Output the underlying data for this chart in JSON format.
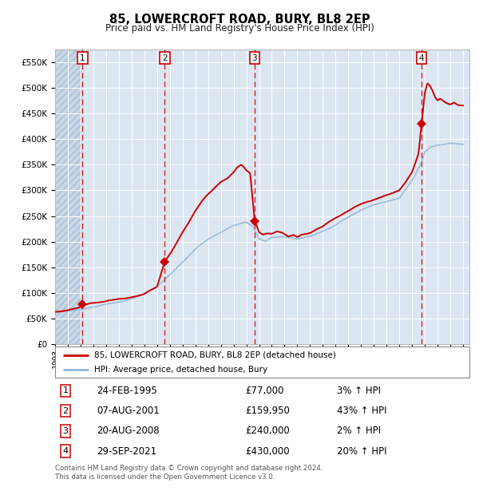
{
  "title": "85, LOWERCROFT ROAD, BURY, BL8 2EP",
  "subtitle": "Price paid vs. HM Land Registry's House Price Index (HPI)",
  "ylabel_ticks": [
    "£0",
    "£50K",
    "£100K",
    "£150K",
    "£200K",
    "£250K",
    "£300K",
    "£350K",
    "£400K",
    "£450K",
    "£500K",
    "£550K"
  ],
  "ytick_vals": [
    0,
    50000,
    100000,
    150000,
    200000,
    250000,
    300000,
    350000,
    400000,
    450000,
    500000,
    550000
  ],
  "ylim": [
    0,
    575000
  ],
  "xlim_start": 1993.0,
  "xlim_end": 2025.5,
  "sale_dates": [
    1995.15,
    2001.6,
    2008.65,
    2021.75
  ],
  "sale_prices": [
    77000,
    159950,
    240000,
    430000
  ],
  "sale_labels": [
    "1",
    "2",
    "3",
    "4"
  ],
  "legend_red": "85, LOWERCROFT ROAD, BURY, BL8 2EP (detached house)",
  "legend_blue": "HPI: Average price, detached house, Bury",
  "table_rows": [
    [
      "1",
      "24-FEB-1995",
      "£77,000",
      "3% ↑ HPI"
    ],
    [
      "2",
      "07-AUG-2001",
      "£159,950",
      "43% ↑ HPI"
    ],
    [
      "3",
      "20-AUG-2008",
      "£240,000",
      "2% ↑ HPI"
    ],
    [
      "4",
      "29-SEP-2021",
      "£430,000",
      "20% ↑ HPI"
    ]
  ],
  "footnote": "Contains HM Land Registry data © Crown copyright and database right 2024.\nThis data is licensed under the Open Government Licence v3.0.",
  "red_line_color": "#cc0000",
  "blue_line_color": "#92b8d8",
  "sale_marker_color": "#cc0000",
  "vline_color": "#cc0000",
  "plot_bg": "#dce6f1"
}
